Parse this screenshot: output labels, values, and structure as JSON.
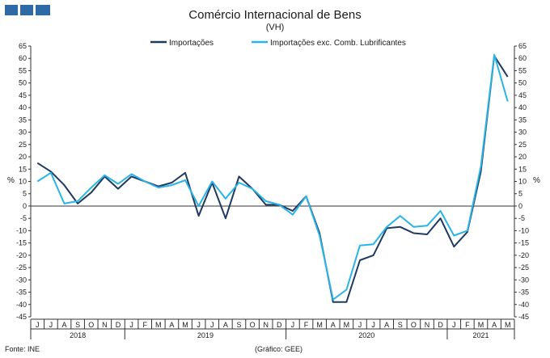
{
  "header": {
    "logo_color": "#2e6aa8"
  },
  "chart_data": {
    "type": "line",
    "title": "Comércio Internacional de Bens",
    "subtitle": "(VH)",
    "ylabel_left": "%",
    "ylabel_right": "%",
    "ylim": [
      -45,
      65
    ],
    "ytick_step": 5,
    "grid": false,
    "legend_position": "top-center",
    "months": [
      "J",
      "J",
      "A",
      "S",
      "O",
      "N",
      "D",
      "J",
      "F",
      "M",
      "A",
      "M",
      "J",
      "J",
      "A",
      "S",
      "O",
      "N",
      "D",
      "J",
      "F",
      "M",
      "A",
      "M",
      "J",
      "J",
      "A",
      "S",
      "O",
      "N",
      "D",
      "J",
      "F",
      "M",
      "A",
      "M"
    ],
    "years": [
      {
        "label": "2018",
        "start": 0,
        "end": 6
      },
      {
        "label": "2019",
        "start": 7,
        "end": 18
      },
      {
        "label": "2020",
        "start": 19,
        "end": 30
      },
      {
        "label": "2021",
        "start": 31,
        "end": 35
      }
    ],
    "series": [
      {
        "name": "Importações",
        "color": "#1f3a5f",
        "values": [
          17.5,
          14,
          8.5,
          1,
          5.5,
          12,
          7,
          12,
          10,
          8,
          9.5,
          13.5,
          -4,
          9.5,
          -5,
          12,
          7,
          0.5,
          0.5,
          -2,
          4,
          -11,
          -39,
          -39,
          -22,
          -20,
          -9,
          -8.5,
          -11,
          -11.5,
          -5,
          -16.5,
          -10.5,
          14,
          61,
          52.5
        ]
      },
      {
        "name": "Importações exc. Comb. Lubrificantes",
        "color": "#29b4e8",
        "values": [
          10,
          13.5,
          1,
          2,
          7.5,
          12.5,
          9,
          13,
          10,
          7.5,
          8.5,
          10.5,
          0,
          10,
          3,
          9.5,
          7,
          2,
          0.5,
          -3.5,
          4,
          -12,
          -38,
          -34,
          -16,
          -15.5,
          -8.5,
          -4,
          -8.5,
          -8,
          -2,
          -12,
          -10,
          16,
          61.5,
          42.5
        ]
      }
    ]
  },
  "footer": {
    "source": "Fonte: INE",
    "credit": "(Gráfico: GEE)"
  }
}
